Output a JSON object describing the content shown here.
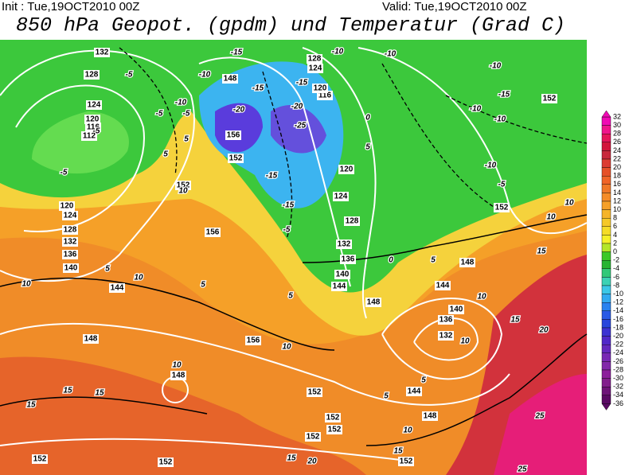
{
  "header": {
    "init": "Init : Tue,19OCT2010 00Z",
    "valid": "Valid: Tue,19OCT2010 00Z",
    "title": "850 hPa Geopot. (gpdm) und Temperatur (Grad C)"
  },
  "colorbar": {
    "ticks": [
      32,
      30,
      28,
      26,
      24,
      22,
      20,
      18,
      16,
      14,
      12,
      10,
      8,
      6,
      4,
      2,
      0,
      -2,
      -4,
      -6,
      -8,
      -10,
      -12,
      -14,
      -16,
      -18,
      -20,
      -22,
      -24,
      -26,
      -28,
      -30,
      -32,
      -34,
      -36
    ],
    "colors": [
      "#f00ab4",
      "#f0148c",
      "#e6145a",
      "#d2143c",
      "#c8283c",
      "#dc3c32",
      "#e65028",
      "#f06428",
      "#f07828",
      "#f58c28",
      "#f5a028",
      "#f5b428",
      "#f5c828",
      "#f5dc28",
      "#f5f028",
      "#b4e628",
      "#3cc828",
      "#28b432",
      "#32c878",
      "#3cd2b4",
      "#3cc8e6",
      "#32aaf0",
      "#2882f0",
      "#285ae6",
      "#2846dc",
      "#3c32d2",
      "#5028c8",
      "#6428be",
      "#7828b4",
      "#8228aa",
      "#8c1e9b",
      "#821e8c",
      "#6e1478",
      "#5a0a64"
    ]
  },
  "map": {
    "height_labels": [
      132,
      128,
      124,
      120,
      116,
      112,
      120,
      124,
      128,
      132,
      136,
      140,
      144,
      148,
      148,
      152,
      156,
      156,
      152,
      152,
      152,
      152,
      152,
      152,
      152,
      148,
      144,
      140,
      136,
      132,
      144,
      148,
      152,
      152,
      148,
      144,
      140,
      136,
      132,
      128,
      124,
      120,
      116,
      120,
      124,
      128,
      148,
      156,
      152
    ],
    "temperature_labels": [
      10,
      10,
      5,
      5,
      5,
      10,
      15,
      15,
      15,
      10,
      10,
      15,
      20,
      15,
      25,
      25,
      20,
      15,
      10,
      5,
      5,
      10,
      15,
      10,
      10,
      5,
      0,
      -5,
      -10,
      -10,
      -10,
      -10,
      -15,
      -10,
      -10,
      -15,
      -20,
      -25,
      -15,
      -15,
      -5,
      0,
      5,
      -5,
      -10,
      -5,
      5,
      5,
      10,
      -5,
      -5,
      -5,
      -10,
      -15,
      -15,
      -20
    ]
  }
}
